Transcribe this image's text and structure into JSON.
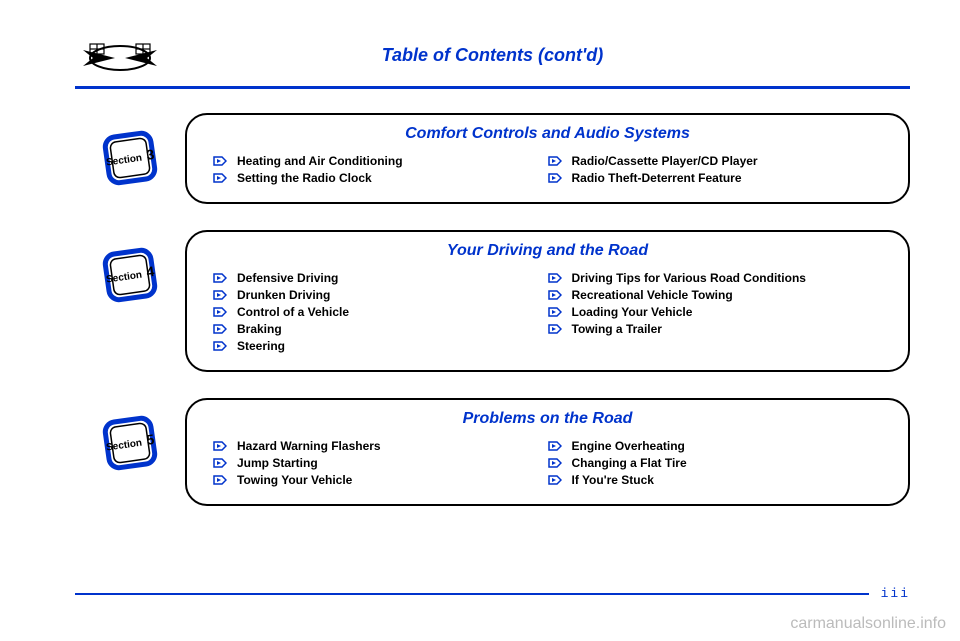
{
  "colors": {
    "blue": "#0033cc",
    "black": "#000000",
    "watermark": "#bbbbbb"
  },
  "page_title": "Table of Contents (cont'd)",
  "page_number": "iii",
  "watermark": "carmanualsonline.info",
  "section_label": "Section",
  "sections": [
    {
      "number": "3",
      "title": "Comfort Controls and Audio Systems",
      "left": [
        "Heating and Air Conditioning",
        "Setting the Radio Clock"
      ],
      "right": [
        "Radio/Cassette Player/CD Player",
        "Radio Theft-Deterrent Feature"
      ]
    },
    {
      "number": "4",
      "title": "Your Driving and the Road",
      "left": [
        "Defensive Driving",
        "Drunken Driving",
        "Control of a Vehicle",
        "Braking",
        "Steering"
      ],
      "right": [
        "Driving Tips for Various Road Conditions",
        "Recreational Vehicle Towing",
        "Loading Your Vehicle",
        "Towing a Trailer"
      ]
    },
    {
      "number": "5",
      "title": "Problems on the Road",
      "left": [
        "Hazard Warning Flashers",
        "Jump Starting",
        "Towing Your Vehicle"
      ],
      "right": [
        "Engine Overheating",
        "Changing a Flat Tire",
        "If You're Stuck"
      ]
    }
  ]
}
